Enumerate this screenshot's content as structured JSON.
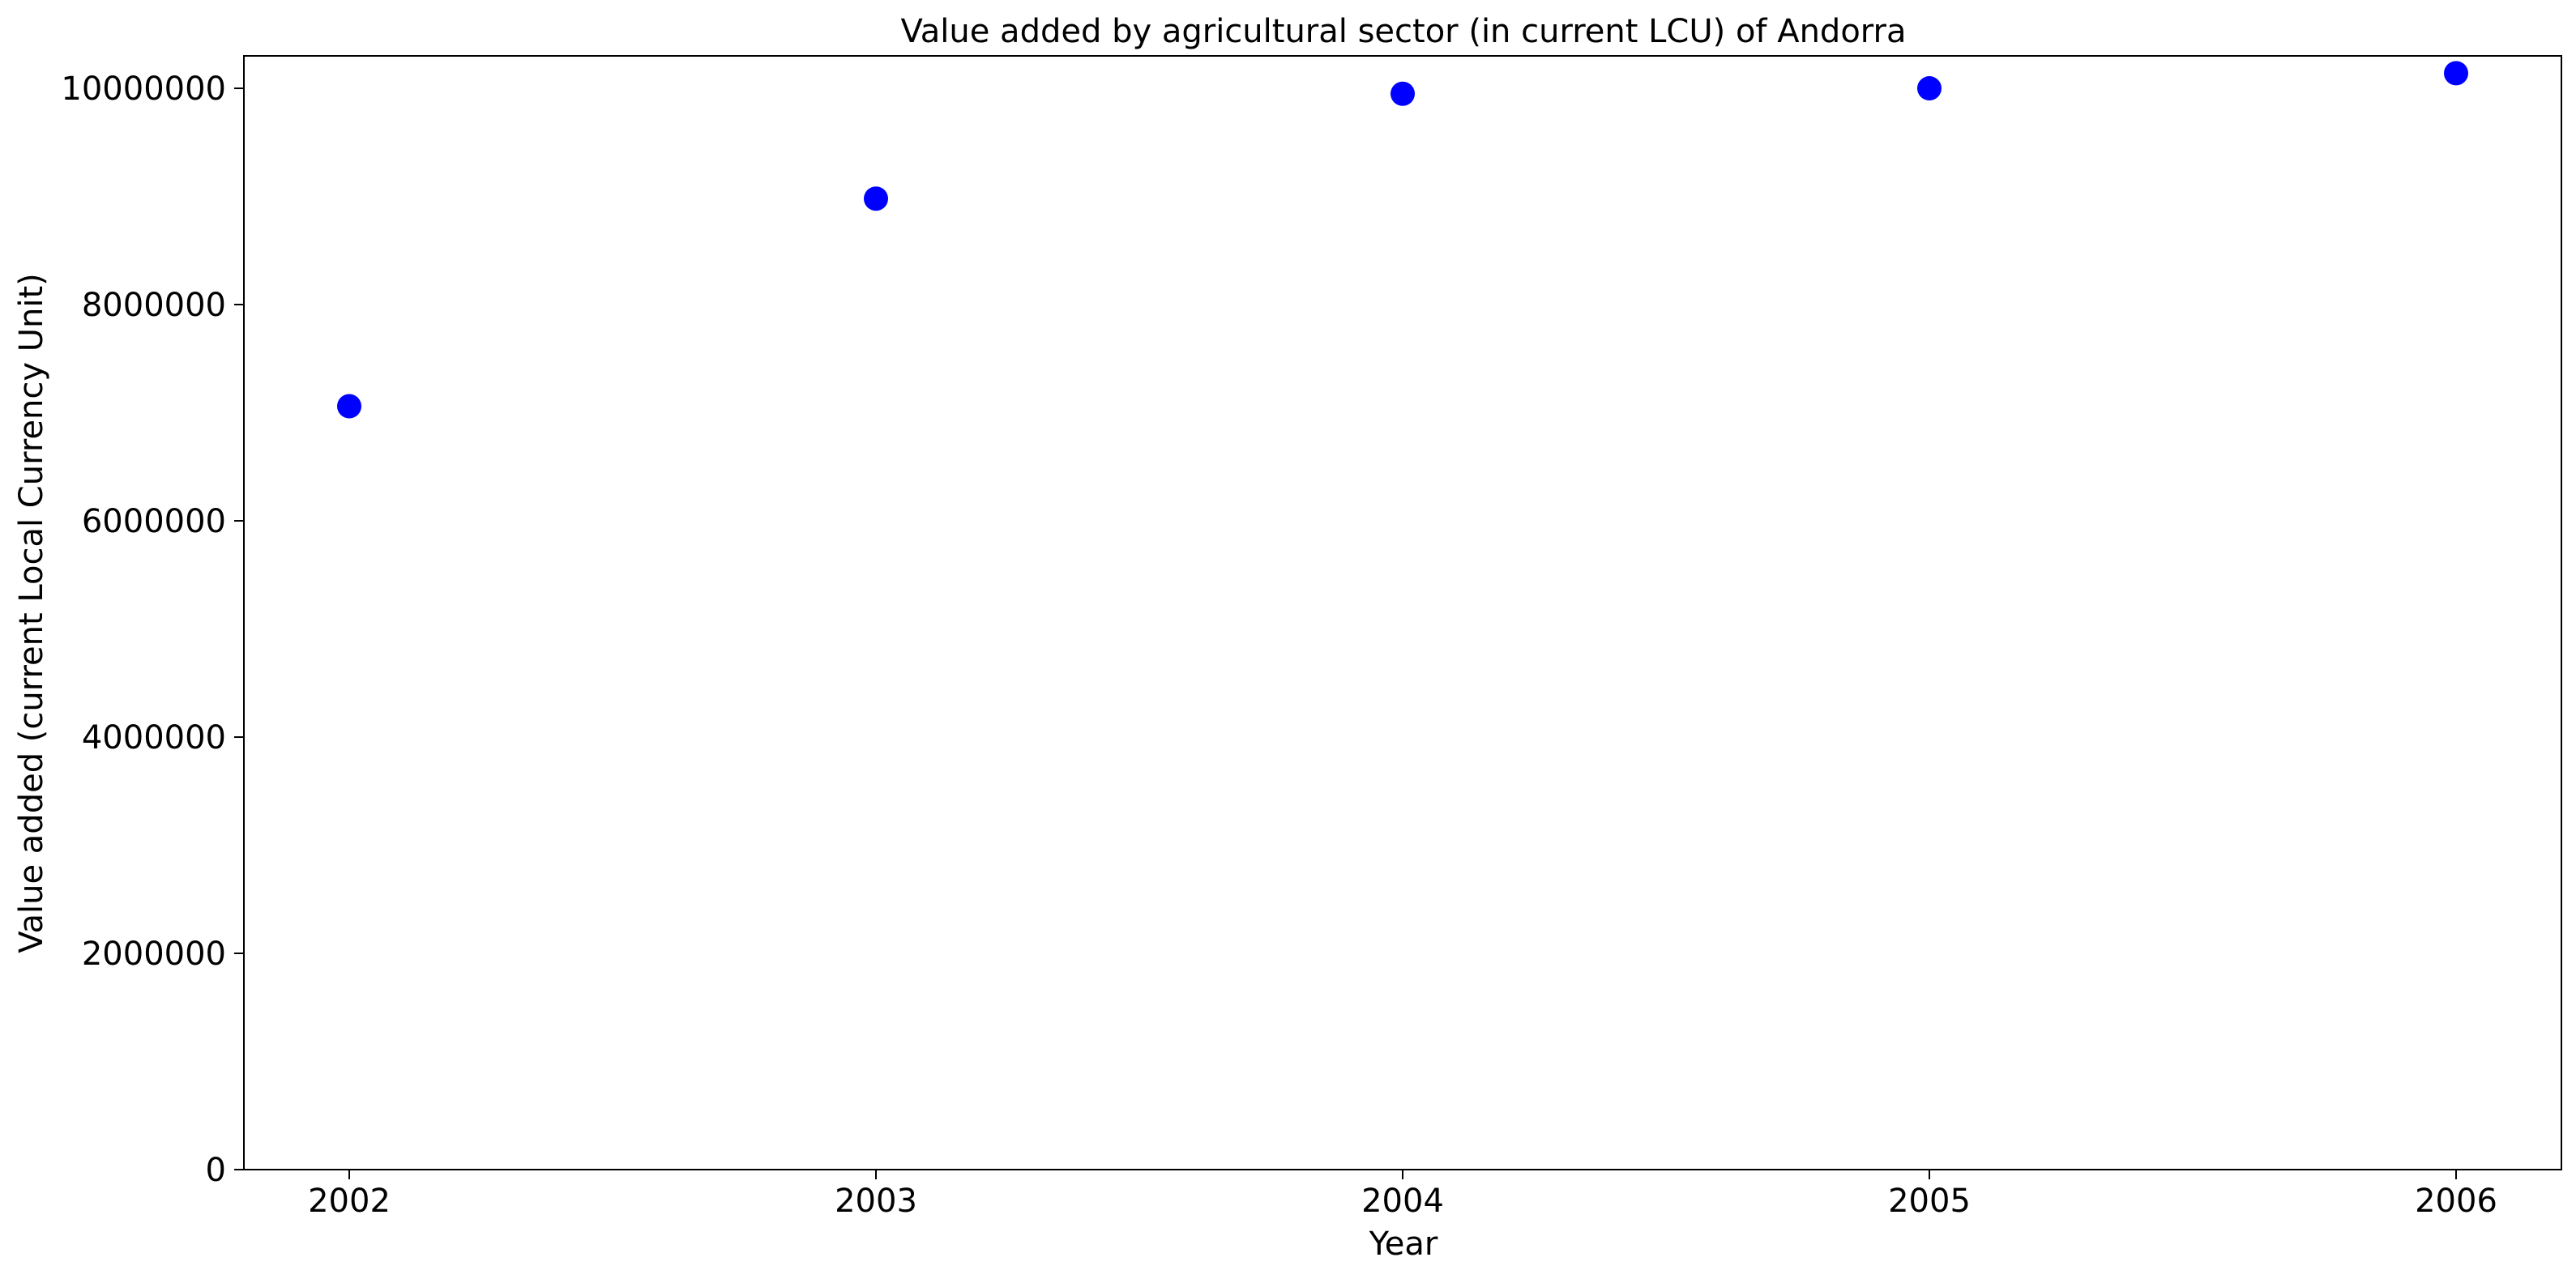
{
  "chart_data": {
    "type": "scatter",
    "title": "Value added by agricultural sector (in current LCU) of Andorra",
    "xlabel": "Year",
    "ylabel": "Value added (current Local Currency Unit)",
    "x": [
      2002,
      2003,
      2004,
      2005,
      2006
    ],
    "y": [
      7060000,
      8980000,
      9950000,
      10000000,
      10140000
    ],
    "x_ticks": [
      "2002",
      "2003",
      "2004",
      "2005",
      "2006"
    ],
    "y_ticks": [
      "0",
      "2000000",
      "4000000",
      "6000000",
      "8000000",
      "10000000"
    ],
    "xlim": [
      2001.8,
      2006.2
    ],
    "ylim": [
      0,
      10300000
    ],
    "grid": false,
    "marker_color": "#0000ff"
  }
}
